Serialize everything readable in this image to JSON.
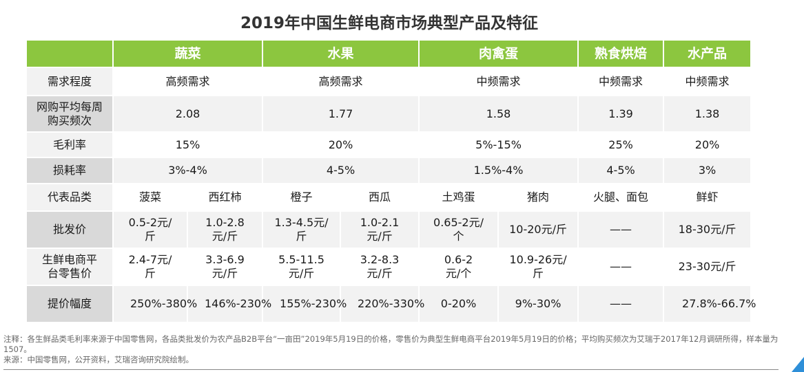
{
  "title": "2019年中国生鲜电商市场典型产品及特征",
  "header": [
    "",
    "蔬菜",
    "水果",
    "肉禽蛋",
    "熟食烘焙",
    "水产品"
  ],
  "rows": [
    {
      "label": "需求程度",
      "cells": [
        "高频需求",
        "高频需求",
        "中频需求",
        "中频需求",
        "中频需求"
      ]
    },
    {
      "label": "网购平均每周购买频次",
      "cells": [
        "2.08",
        "1.77",
        "1.58",
        "1.39",
        "1.38"
      ]
    },
    {
      "label": "毛利率",
      "cells": [
        "15%",
        "20%",
        "5%-15%",
        "25%",
        "20%"
      ]
    },
    {
      "label": "损耗率",
      "cells": [
        "3%-4%",
        "4-5%",
        "1.5%-4%",
        "4-5%",
        "3%"
      ]
    },
    {
      "label": "代表品类",
      "cells": [
        "菠菜",
        "西红柿",
        "橙子",
        "西瓜",
        "土鸡蛋",
        "猪肉",
        "火腿、面包",
        "鲜虾"
      ]
    },
    {
      "label": "批发价",
      "cells": [
        "0.5-2元/斤",
        "1.0-2.8元/斤",
        "1.3-4.5元/斤",
        "1.0-2.1元/斤",
        "0.65-2元/个",
        "10-20元/斤",
        "——",
        "18-30元/斤"
      ]
    },
    {
      "label": "生鲜电商平台零售价",
      "cells": [
        "2.4-7元/斤",
        "3.3-6.9元/斤",
        "5.5-11.5元/斤",
        "3.2-8.3元/斤",
        "0.6-2元/个",
        "10.9-26元/斤",
        "——",
        "23-30元/斤"
      ]
    },
    {
      "label": "提价幅度",
      "cells": [
        "250%-380%",
        "146%-230%",
        "155%-230%",
        "220%-330%",
        "0-20%",
        "9%-30%",
        "——",
        "27.8%-66.7%"
      ]
    }
  ],
  "notes": {
    "note": "注释：各生鲜品类毛利率来源于中国零售网，各品类批发价为农产品B2B平台“一亩田”2019年5月19日的价格，零售价为典型生鲜电商平台2019年5月19日的价格；平均购买频次为艾瑞于2017年12月调研所得，样本量为1507。",
    "source": "来源：中国零售网，公开资料，艾瑞咨询研究院绘制。"
  },
  "colors": {
    "header_green": "#8cc63f",
    "label_gray": "#d9d9d9",
    "stripe_gray": "#f2f2f2"
  }
}
